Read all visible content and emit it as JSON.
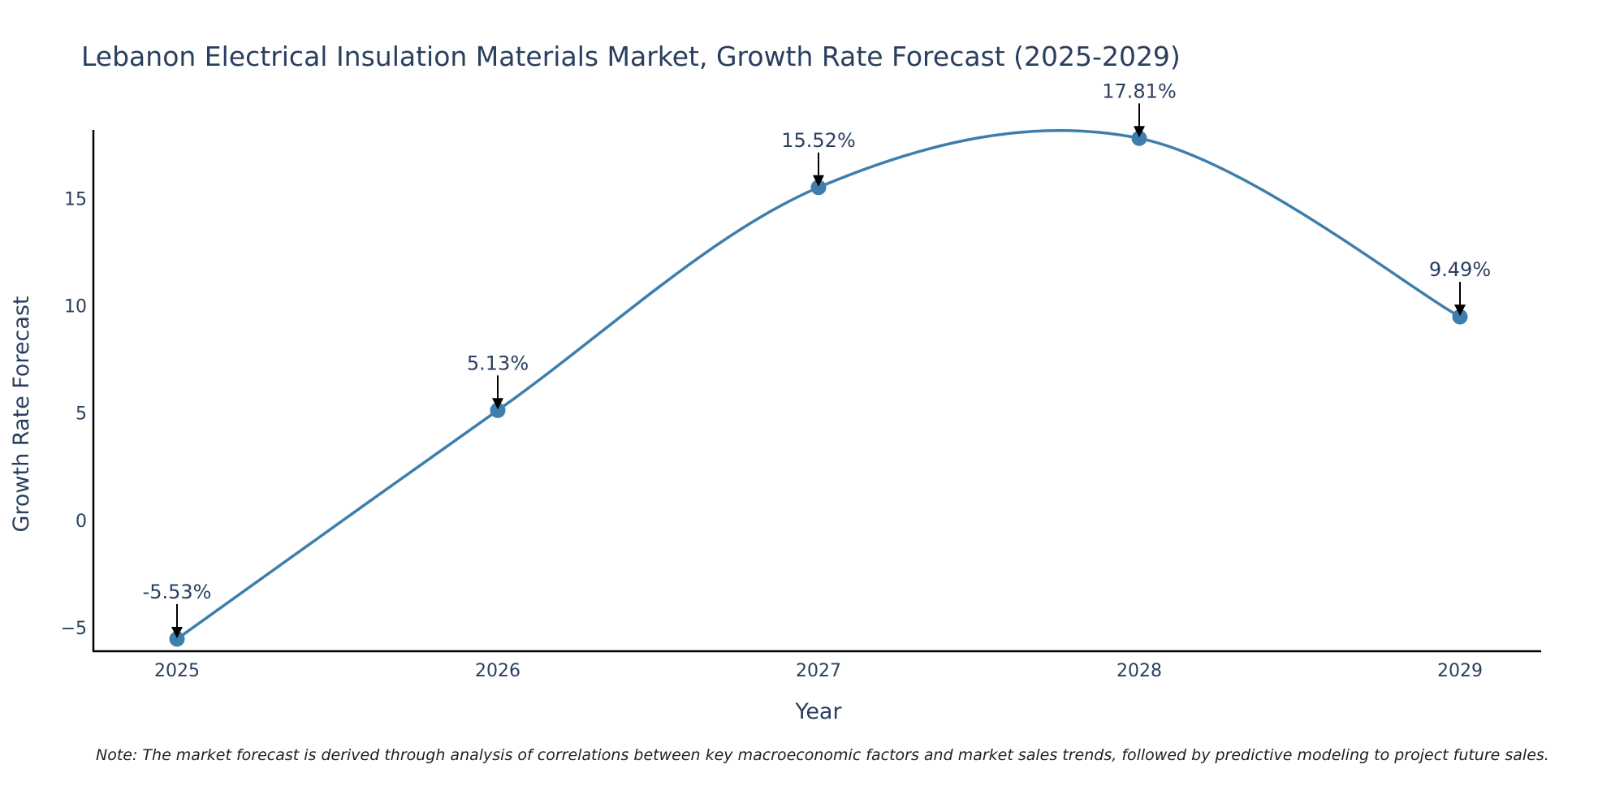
{
  "chart_data": {
    "type": "line",
    "title": "Lebanon Electrical Insulation Materials Market, Growth Rate Forecast (2025-2029)",
    "xlabel": "Year",
    "ylabel": "Growth Rate Forecast",
    "categories": [
      "2025",
      "2026",
      "2027",
      "2028",
      "2029"
    ],
    "series": [
      {
        "name": "Growth Rate Forecast",
        "values": [
          -5.53,
          5.13,
          15.52,
          17.81,
          9.49
        ],
        "data_labels": [
          "-5.53%",
          "5.13%",
          "15.52%",
          "17.81%",
          "9.49%"
        ]
      }
    ],
    "ylim": [
      -6.1,
      18.2
    ],
    "y_ticks": [
      -5,
      0,
      5,
      10,
      15
    ],
    "y_tick_labels": [
      "−5",
      "0",
      "5",
      "10",
      "15"
    ],
    "line_shape": "spline",
    "grid": false,
    "colors": {
      "line": "#3d7ead",
      "marker": "#3d7ead",
      "arrow": "#000000",
      "axis": "#000000",
      "text": "#2a3f5f"
    }
  },
  "note": "Note: The market forecast is derived through analysis of correlations between key macroeconomic factors and market sales trends, followed by predictive modeling to project future sales."
}
